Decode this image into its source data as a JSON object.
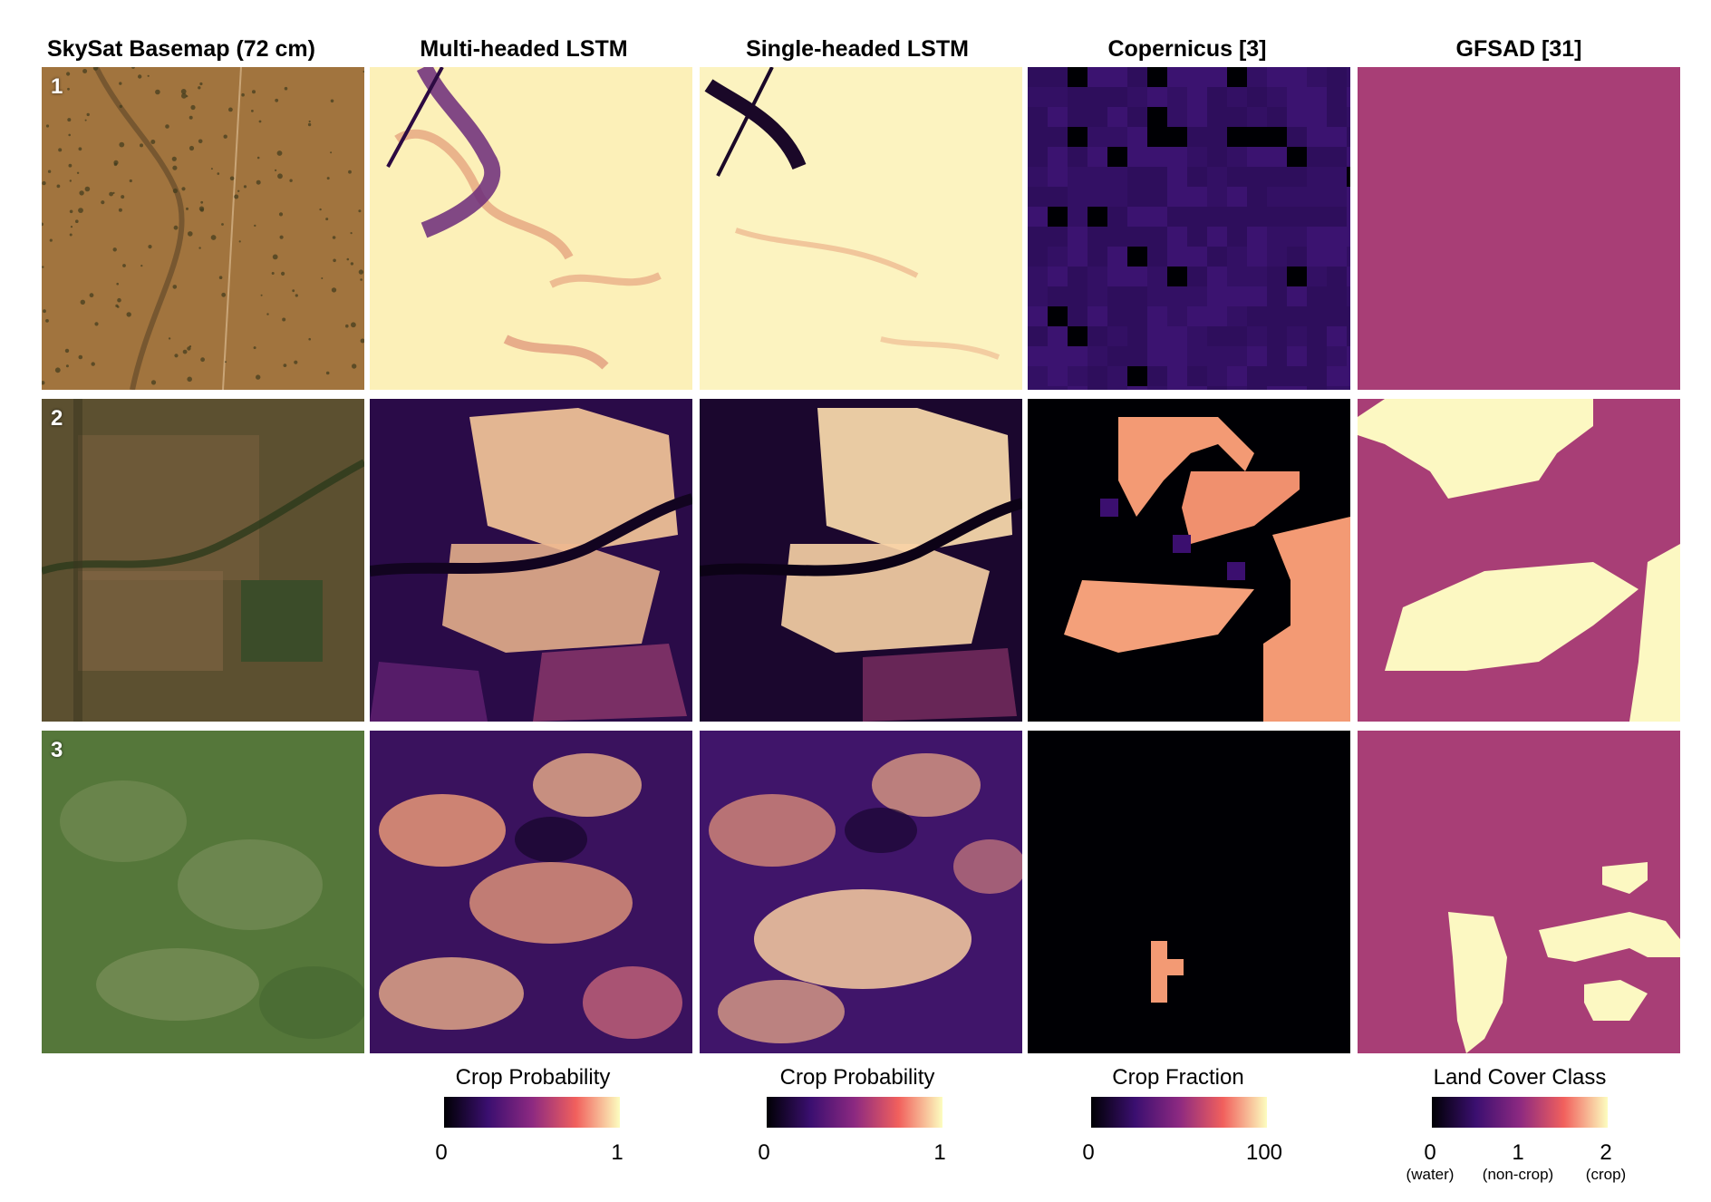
{
  "columns": [
    {
      "title": "SkySat Basemap (72 cm)"
    },
    {
      "title": "Multi-headed LSTM"
    },
    {
      "title": "Single-headed LSTM"
    },
    {
      "title": "Copernicus [3]"
    },
    {
      "title": "GFSAD [31]"
    }
  ],
  "rows": [
    {
      "label": "1"
    },
    {
      "label": "2"
    },
    {
      "label": "3"
    }
  ],
  "colorbars": [
    {
      "title": "Crop Probability",
      "ticks": [
        "0",
        "1"
      ]
    },
    {
      "title": "Crop Probability",
      "ticks": [
        "0",
        "1"
      ]
    },
    {
      "title": "Crop Fraction",
      "ticks": [
        "0",
        "100"
      ]
    },
    {
      "title": "Land Cover Class",
      "ticks": [
        "0",
        "1",
        "2"
      ],
      "tick_notes": [
        "(water)",
        "(non-crop)",
        "(crop)"
      ]
    }
  ],
  "colors": {
    "magma_dark": "#000004",
    "magma_purple": "#51127c",
    "magma_magenta": "#b73779",
    "magma_orange": "#fc8961",
    "magma_light": "#fcfdbf",
    "gfsad_noncrop": "#a83e76",
    "gfsad_crop": "#fcf8c2",
    "sat_row1": "#9a6e3a",
    "sat_row2": "#5c5030",
    "sat_row3": "#55773a"
  }
}
